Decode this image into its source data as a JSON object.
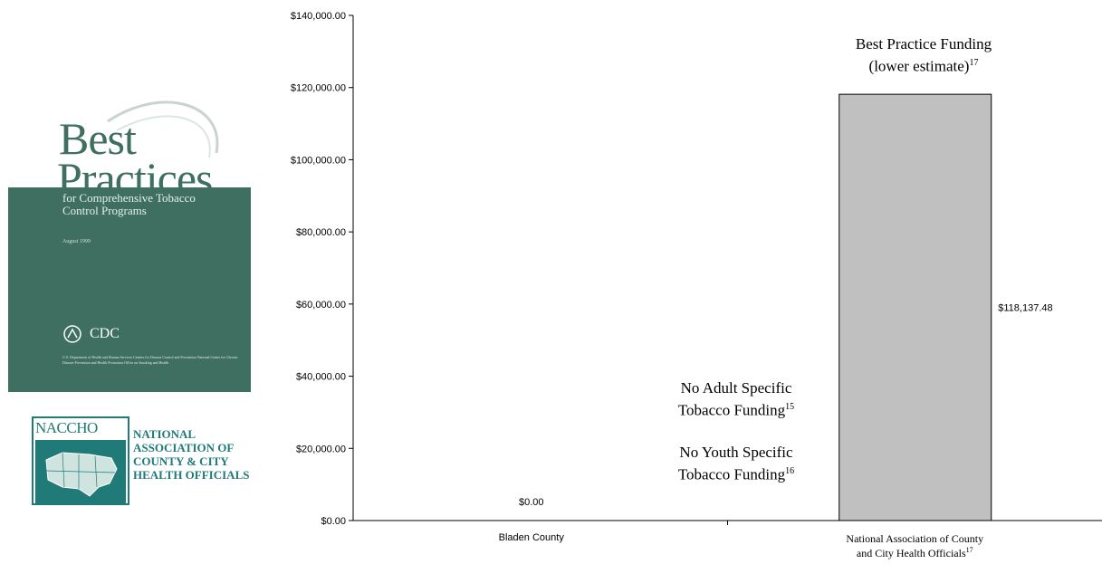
{
  "logos": {
    "best_practices": {
      "title_line1": "Best",
      "title_line2": "Practices",
      "subtitle": "for Comprehensive Tobacco Control Programs",
      "date": "August 1999",
      "agency": "CDC",
      "fine_print": "U.S. Department of Health and Human Services Centers for Disease Control and Prevention National Center for Chronic Disease Prevention and Health Promotion Office on Smoking and Health"
    },
    "naccho": {
      "acronym": "NACCHO",
      "line1": "NATIONAL",
      "line2": "ASSOCIATION OF",
      "line3": "COUNTY & CITY",
      "line4": "HEALTH OFFICIALS"
    }
  },
  "chart_data": {
    "type": "bar",
    "categories": [
      "Bladen County",
      "National Association of County and City Health Officials"
    ],
    "category_footnotes": [
      "",
      "17"
    ],
    "values": [
      0,
      118137.48
    ],
    "value_labels": [
      "$0.00",
      "$118,137.48"
    ],
    "ylim": [
      0,
      140000
    ],
    "yticks": [
      0,
      20000,
      40000,
      60000,
      80000,
      100000,
      120000,
      140000
    ],
    "ytick_labels": [
      "$0.00",
      "$20,000.00",
      "$40,000.00",
      "$60,000.00",
      "$80,000.00",
      "$100,000.00",
      "$120,000.00",
      "$140,000.00"
    ],
    "bar_color": "#c0c0c0",
    "grid": false,
    "title": "",
    "xlabel": "",
    "ylabel": ""
  },
  "annotations": {
    "best_practice": {
      "line1": "Best Practice Funding",
      "line2": "(lower estimate)",
      "footnote": "17"
    },
    "no_adult": {
      "line1": "No Adult Specific",
      "line2": "Tobacco Funding",
      "footnote": "15"
    },
    "no_youth": {
      "line1": "No Youth Specific",
      "line2": "Tobacco Funding",
      "footnote": "16"
    }
  }
}
